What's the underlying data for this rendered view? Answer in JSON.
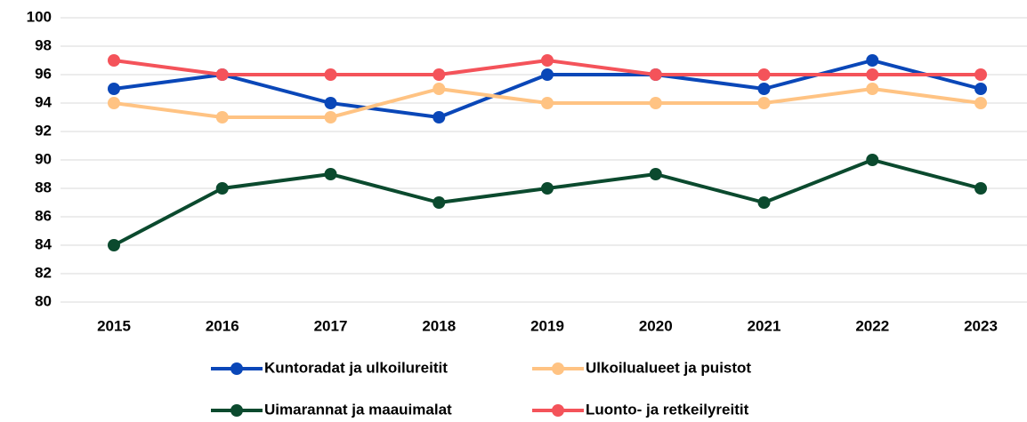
{
  "chart_data": {
    "type": "line",
    "categories": [
      "2015",
      "2016",
      "2017",
      "2018",
      "2019",
      "2020",
      "2021",
      "2022",
      "2023"
    ],
    "series": [
      {
        "name": "Kuntoradat ja ulkoilureitit",
        "color": "#0a47b8",
        "values": [
          95,
          96,
          94,
          93,
          96,
          96,
          95,
          97,
          95
        ]
      },
      {
        "name": "Ulkoilualueet ja puistot",
        "color": "#ffc383",
        "values": [
          94,
          93,
          93,
          95,
          94,
          94,
          94,
          95,
          94
        ]
      },
      {
        "name": "Uimarannat ja maauimalat",
        "color": "#0b4a2e",
        "values": [
          84,
          88,
          89,
          87,
          88,
          89,
          87,
          90,
          88
        ]
      },
      {
        "name": "Luonto- ja retkeilyreitit",
        "color": "#f4535a",
        "values": [
          97,
          96,
          96,
          96,
          97,
          96,
          96,
          96,
          96
        ]
      }
    ],
    "ylim": [
      80,
      100
    ],
    "yticks": [
      80,
      82,
      84,
      86,
      88,
      90,
      92,
      94,
      96,
      98,
      100
    ],
    "grid": true,
    "legend": "bottom"
  }
}
